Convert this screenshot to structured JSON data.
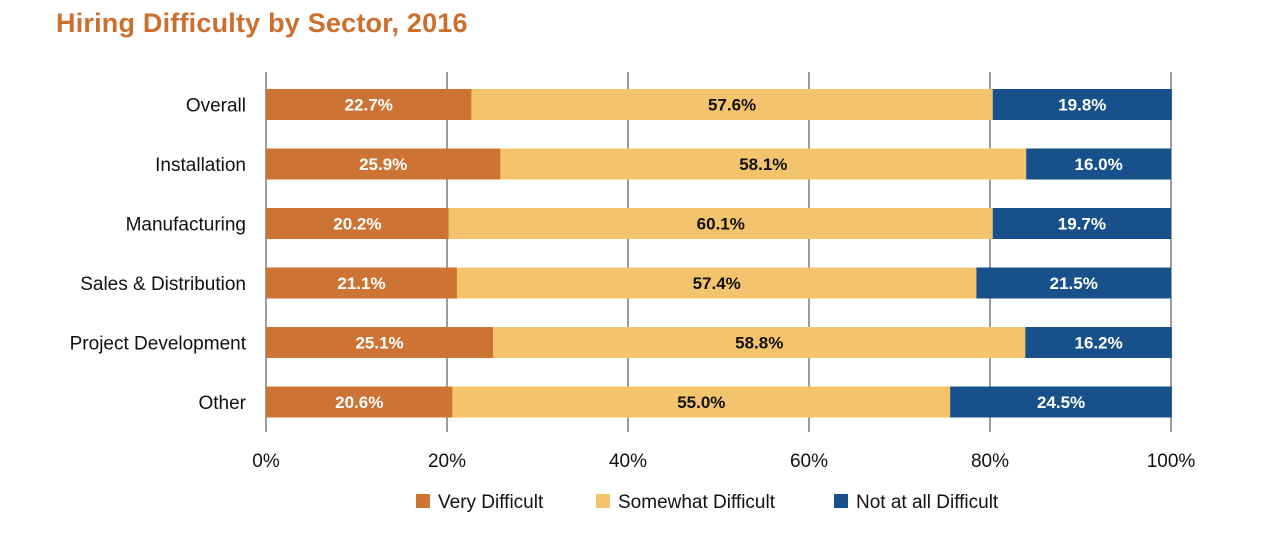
{
  "chart_data": {
    "type": "bar",
    "orientation": "horizontal",
    "stacked": true,
    "title": "Hiring Difficulty by Sector, 2016",
    "categories": [
      "Overall",
      "Installation",
      "Manufacturing",
      "Sales & Distribution",
      "Project Development",
      "Other"
    ],
    "series": [
      {
        "name": "Very Difficult",
        "values": [
          22.7,
          25.9,
          20.2,
          21.1,
          25.1,
          20.6
        ],
        "labels": [
          "22.7%",
          "25.9%",
          "20.2%",
          "21.1%",
          "25.1%",
          "20.6%"
        ],
        "color": "#cd7435",
        "label_color": "#ffffff"
      },
      {
        "name": "Somewhat Difficult",
        "values": [
          57.6,
          58.1,
          60.1,
          57.4,
          58.8,
          55.0
        ],
        "labels": [
          "57.6%",
          "58.1%",
          "60.1%",
          "57.4%",
          "58.8%",
          "55.0%"
        ],
        "color": "#f4c46c",
        "label_color": "#111111"
      },
      {
        "name": "Not at all Difficult",
        "values": [
          19.8,
          16.0,
          19.7,
          21.5,
          16.2,
          24.5
        ],
        "labels": [
          "19.8%",
          "16.0%",
          "19.7%",
          "21.5%",
          "16.2%",
          "24.5%"
        ],
        "color": "#17508a",
        "label_color": "#ffffff"
      }
    ],
    "x_ticks": [
      "0%",
      "20%",
      "40%",
      "60%",
      "80%",
      "100%"
    ],
    "xlim": [
      0,
      100
    ],
    "grid": true,
    "legend": "bottom",
    "xlabel": "",
    "ylabel": ""
  }
}
